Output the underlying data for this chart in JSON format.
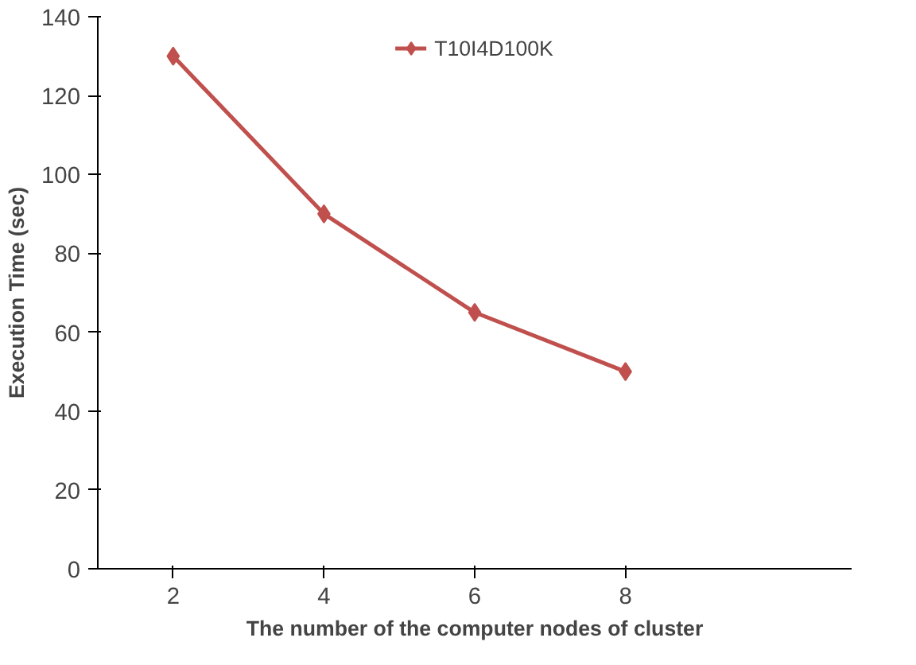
{
  "chart_data": {
    "type": "line",
    "xlabel": "The number of the computer nodes of cluster",
    "ylabel": "Execution Time (sec)",
    "categories": [
      "2",
      "4",
      "6",
      "8",
      null
    ],
    "series": [
      {
        "name": "T10I4D100K",
        "color": "#c0504d",
        "values": [
          130,
          90,
          65,
          50,
          null
        ]
      }
    ],
    "ylim": [
      0,
      140
    ],
    "yticks": [
      0,
      20,
      40,
      60,
      80,
      100,
      120,
      140
    ],
    "grid": false,
    "legend": "top",
    "marker": "diamond",
    "line_style": "solid"
  }
}
